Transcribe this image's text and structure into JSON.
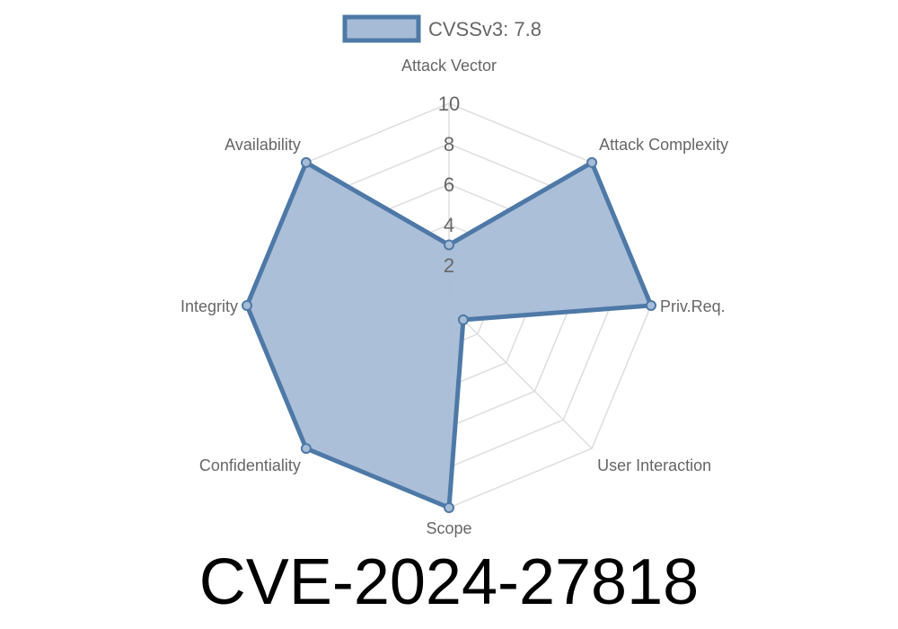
{
  "chart_data": {
    "type": "radar",
    "title": "CVE-2024-27818",
    "axes": [
      "Attack Vector",
      "Attack Complexity",
      "Priv.Req.",
      "User Interaction",
      "Scope",
      "Confidentiality",
      "Integrity",
      "Availability"
    ],
    "series": [
      {
        "name": "CVSSv3: 7.8",
        "values": [
          3.0,
          10,
          10,
          1.0,
          10,
          10,
          10,
          10
        ]
      }
    ],
    "rlim": [
      0,
      10
    ],
    "ticks": [
      "2",
      "4",
      "6",
      "8",
      "10"
    ],
    "legend": "top",
    "grid": true,
    "colors": {
      "line": "#4e79a7",
      "fill": "#a6bcd6",
      "grid": "#dddddd"
    }
  }
}
